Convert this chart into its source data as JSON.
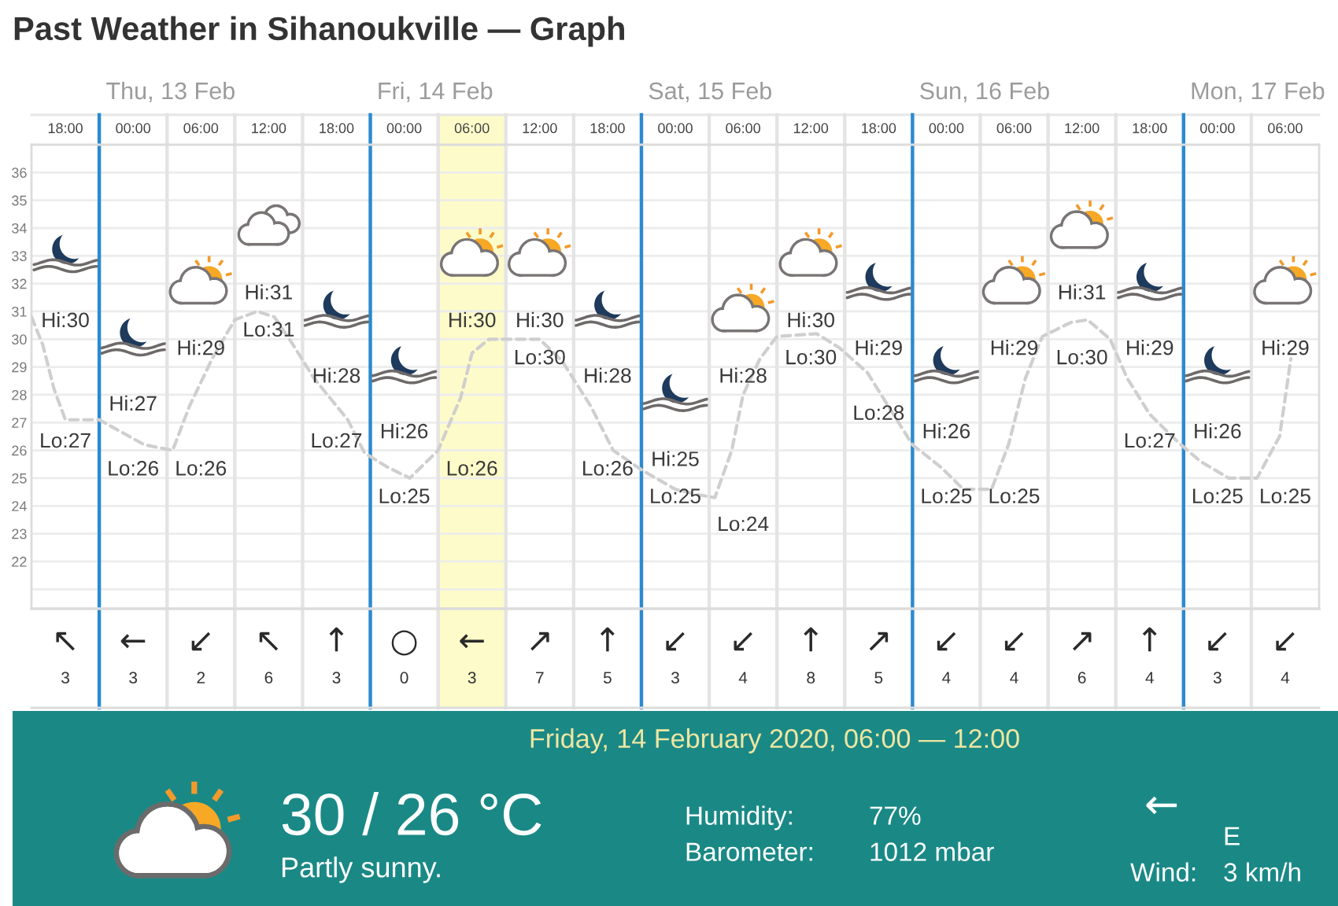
{
  "chart_data": [
    {
      "type": "line",
      "title": "Past Weather in Sihanoukville — Graph",
      "xlim": [
        "2020-02-12T18:00",
        "2020-02-17T12:00"
      ],
      "ylim": [
        20.3,
        37
      ],
      "xticks": [
        {
          "value": "2020-02-12T21:00",
          "label": "18:00"
        },
        {
          "value": "2020-02-13T03:00",
          "label": "00:00"
        },
        {
          "value": "2020-02-13T09:00",
          "label": "06:00"
        },
        {
          "value": "2020-02-13T15:00",
          "label": "12:00"
        },
        {
          "value": "2020-02-13T21:00",
          "label": "18:00"
        },
        {
          "value": "2020-02-14T03:00",
          "label": "00:00"
        },
        {
          "value": "2020-02-14T09:00",
          "label": "06:00"
        },
        {
          "value": "2020-02-14T15:00",
          "label": "12:00"
        },
        {
          "value": "2020-02-14T21:00",
          "label": "18:00"
        },
        {
          "value": "2020-02-15T03:00",
          "label": "00:00"
        },
        {
          "value": "2020-02-15T09:00",
          "label": "06:00"
        },
        {
          "value": "2020-02-15T15:00",
          "label": "12:00"
        },
        {
          "value": "2020-02-15T21:00",
          "label": "18:00"
        },
        {
          "value": "2020-02-16T03:00",
          "label": "00:00"
        },
        {
          "value": "2020-02-16T09:00",
          "label": "06:00"
        },
        {
          "value": "2020-02-16T15:00",
          "label": "12:00"
        },
        {
          "value": "2020-02-16T21:00",
          "label": "18:00"
        },
        {
          "value": "2020-02-17T03:00",
          "label": "00:00"
        },
        {
          "value": "2020-02-17T09:00",
          "label": "06:00"
        }
      ],
      "yticks": [
        {
          "value": 21,
          "label": null
        },
        22,
        23,
        24,
        25,
        26,
        27,
        28,
        29,
        30,
        31,
        32,
        33,
        34,
        35,
        36
      ],
      "grid": "y",
      "line_style": "dashed",
      "series": [
        {
          "color": "#cfcfcf",
          "x": [
            "2020-02-12T18:00",
            "2020-02-12T19:00",
            "2020-02-12T20:00",
            "2020-02-12T21:00",
            "2020-02-13T00:00",
            "2020-02-13T04:00",
            "2020-02-13T06:30",
            "2020-02-13T08:00",
            "2020-02-13T10:00",
            "2020-02-13T12:00",
            "2020-02-13T14:00",
            "2020-02-13T15:30",
            "2020-02-13T17:00",
            "2020-02-13T19:00",
            "2020-02-13T22:00",
            "2020-02-13T23:30",
            "2020-02-14T01:30",
            "2020-02-14T03:30",
            "2020-02-14T06:00",
            "2020-02-14T08:00",
            "2020-02-14T09:00",
            "2020-02-14T10:30",
            "2020-02-14T15:00",
            "2020-02-14T17:00",
            "2020-02-14T19:30",
            "2020-02-14T21:30",
            "2020-02-15T00:00",
            "2020-02-15T03:00",
            "2020-02-15T05:00",
            "2020-02-15T06:30",
            "2020-02-15T08:00",
            "2020-02-15T09:00",
            "2020-02-15T10:30",
            "2020-02-15T12:00",
            "2020-02-15T15:30",
            "2020-02-15T17:30",
            "2020-02-15T20:00",
            "2020-02-15T22:00",
            "2020-02-16T00:00",
            "2020-02-16T02:30",
            "2020-02-16T04:30",
            "2020-02-16T07:00",
            "2020-02-16T08:30",
            "2020-02-16T10:00",
            "2020-02-16T11:30",
            "2020-02-16T14:00",
            "2020-02-16T15:30",
            "2020-02-16T17:30",
            "2020-02-16T19:00",
            "2020-02-16T21:00",
            "2020-02-16T23:30",
            "2020-02-17T01:30",
            "2020-02-17T04:00",
            "2020-02-17T06:30",
            "2020-02-17T08:30",
            "2020-02-17T09:30"
          ],
          "values": [
            30.8,
            29.8,
            28.2,
            27.1,
            27.1,
            26.2,
            26.0,
            27.6,
            29.3,
            30.7,
            31.0,
            30.8,
            29.9,
            28.6,
            27.1,
            25.9,
            25.4,
            25.0,
            26.0,
            27.9,
            29.5,
            30.0,
            30.0,
            29.2,
            27.6,
            26.0,
            25.3,
            24.6,
            24.4,
            24.3,
            26.0,
            28.0,
            29.3,
            30.1,
            30.2,
            29.7,
            28.8,
            27.5,
            26.2,
            25.4,
            24.6,
            24.6,
            26.2,
            28.6,
            30.1,
            30.6,
            30.7,
            30.0,
            28.6,
            27.3,
            26.3,
            25.6,
            25.0,
            25.0,
            26.5,
            29.3
          ]
        }
      ],
      "bands": [
        {
          "axis": "x",
          "from": "2020-02-14T06:00",
          "to": "2020-02-14T12:00",
          "color": "#fdfbc9"
        }
      ],
      "ref_lines": [
        {
          "axis": "x",
          "value": "2020-02-13T00:00",
          "label": "Thu, 13 Feb",
          "color": "#2b8ad0"
        },
        {
          "axis": "x",
          "value": "2020-02-13T06:00",
          "color": "#e4e4e4"
        },
        {
          "axis": "x",
          "value": "2020-02-13T12:00",
          "color": "#e4e4e4"
        },
        {
          "axis": "x",
          "value": "2020-02-13T18:00",
          "color": "#e4e4e4"
        },
        {
          "axis": "x",
          "value": "2020-02-14T00:00",
          "label": "Fri, 14 Feb",
          "color": "#2b8ad0"
        },
        {
          "axis": "x",
          "value": "2020-02-14T06:00",
          "color": "#e4e4e4"
        },
        {
          "axis": "x",
          "value": "2020-02-14T12:00",
          "color": "#e4e4e4"
        },
        {
          "axis": "x",
          "value": "2020-02-14T18:00",
          "color": "#e4e4e4"
        },
        {
          "axis": "x",
          "value": "2020-02-15T00:00",
          "label": "Sat, 15 Feb",
          "color": "#2b8ad0"
        },
        {
          "axis": "x",
          "value": "2020-02-15T06:00",
          "color": "#e4e4e4"
        },
        {
          "axis": "x",
          "value": "2020-02-15T12:00",
          "color": "#e4e4e4"
        },
        {
          "axis": "x",
          "value": "2020-02-15T18:00",
          "color": "#e4e4e4"
        },
        {
          "axis": "x",
          "value": "2020-02-16T00:00",
          "label": "Sun, 16 Feb",
          "color": "#2b8ad0"
        },
        {
          "axis": "x",
          "value": "2020-02-16T06:00",
          "color": "#e4e4e4"
        },
        {
          "axis": "x",
          "value": "2020-02-16T12:00",
          "color": "#e4e4e4"
        },
        {
          "axis": "x",
          "value": "2020-02-16T18:00",
          "color": "#e4e4e4"
        },
        {
          "axis": "x",
          "value": "2020-02-17T00:00",
          "label": "Mon, 17 Feb",
          "color": "#2b8ad0"
        },
        {
          "axis": "x",
          "value": "2020-02-17T06:00",
          "color": "#e4e4e4"
        }
      ],
      "annotations": [
        "Hi:30",
        "Lo:27",
        "Hi:27",
        "Lo:26",
        "Hi:29",
        "Lo:26",
        "Hi:31",
        "Lo:31",
        "Hi:28",
        "Lo:27",
        "Hi:26",
        "Lo:25",
        "Hi:30",
        "Lo:26",
        "Hi:30",
        "Lo:30",
        "Hi:28",
        "Lo:26",
        "Hi:25",
        "Lo:25",
        "Hi:28",
        "Lo:24",
        "Hi:30",
        "Lo:30",
        "Hi:29",
        "Lo:28",
        "Hi:26",
        "Lo:25",
        "Hi:29",
        "Lo:25",
        "Hi:31",
        "Lo:30",
        "Hi:29",
        "Lo:27",
        "Hi:26",
        "Lo:25",
        "Hi:29",
        "Lo:25"
      ]
    },
    {
      "type": "other",
      "categories": [
        null,
        null,
        null,
        null,
        null,
        null,
        null,
        null,
        null,
        null,
        null,
        null,
        null,
        null,
        null,
        null,
        null,
        null,
        null
      ],
      "values": [
        3,
        3,
        2,
        6,
        3,
        0,
        3,
        7,
        5,
        3,
        4,
        8,
        5,
        4,
        4,
        6,
        4,
        3,
        4
      ],
      "data_labels": true,
      "annotations": [
        "↖",
        "←",
        "↙",
        "↖",
        "↑",
        "○",
        "←",
        "↗",
        "↑",
        "↙",
        "↙",
        "↑",
        "↗",
        "↙",
        "↙",
        "↗",
        "↑",
        "↙",
        "↙"
      ]
    },
    {
      "type": "other",
      "title": "Friday, 14 February 2020, 06:00 — 12:00",
      "annotations": [
        "30 / 26 °C",
        "Partly sunny.",
        "Humidity:",
        "77%",
        "Barometer:",
        "1012 mbar",
        "←",
        "E",
        "Wind:",
        "3 km/h"
      ]
    }
  ]
}
